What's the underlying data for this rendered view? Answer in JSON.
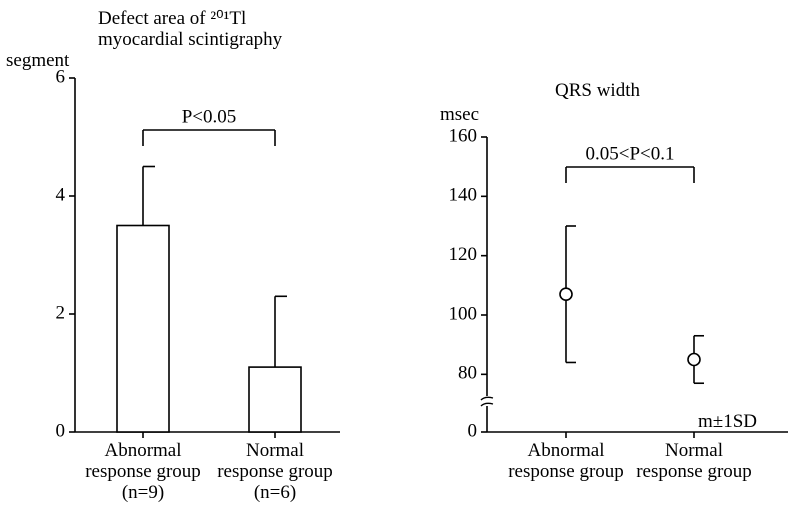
{
  "chart_data": [
    {
      "type": "bar",
      "title": "Defect area of ²⁰¹Tl\nmyocardial scintigraphy",
      "y_label": "segment",
      "categories": [
        "Abnormal\nresponse group\n(n=9)",
        "Normal\nresponse group\n(n=6)"
      ],
      "values": [
        3.5,
        1.1
      ],
      "errors": [
        1.0,
        1.2
      ],
      "color": "#ffffff",
      "ylim": [
        0,
        6
      ],
      "yticks": [
        0,
        2,
        4,
        6
      ],
      "annotation": "P<0.05"
    },
    {
      "type": "errorpoint",
      "title": "QRS width",
      "y_label": "msec",
      "categories": [
        "Abnormal\nresponse group",
        "Normal\nresponse group"
      ],
      "values": [
        107,
        85
      ],
      "errors": [
        23,
        8
      ],
      "color": "#ffffff",
      "ylim": [
        0,
        160
      ],
      "ybreak": [
        0,
        70
      ],
      "yticks": [
        0,
        80,
        100,
        120,
        140,
        160
      ],
      "annotation": "0.05<P<0.1",
      "note": "m±1SD"
    }
  ]
}
